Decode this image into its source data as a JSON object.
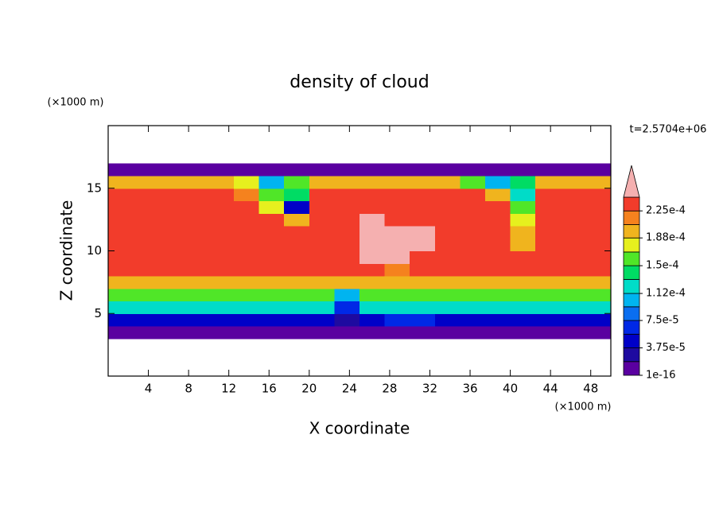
{
  "chart_data": {
    "type": "contour",
    "title": "density of cloud",
    "x_label": "X coordinate",
    "y_label": "Z coordinate",
    "x_unit": "(×1000 m)",
    "y_unit": "(×1000 m)",
    "annotation": "t=2.5704e+06",
    "xlim": [
      0,
      50
    ],
    "ylim": [
      0,
      20
    ],
    "xticks": [
      4,
      8,
      12,
      16,
      20,
      24,
      28,
      32,
      36,
      40,
      44,
      48
    ],
    "yticks": [
      5,
      10,
      15
    ],
    "x": [
      1.25,
      3.75,
      6.25,
      8.75,
      11.25,
      13.75,
      16.25,
      18.75,
      21.25,
      23.75,
      26.25,
      28.75,
      31.25,
      33.75,
      36.25,
      38.75,
      41.25,
      43.75,
      46.25,
      48.75
    ],
    "z": [
      3.5,
      4.5,
      5.5,
      6.5,
      7.5,
      8.5,
      9.5,
      10.5,
      11.5,
      12.5,
      13.5,
      14.5,
      15.5,
      16.5
    ],
    "values": [
      [
        1.2e-05,
        1.2e-05,
        1.2e-05,
        1.2e-05,
        1.2e-05,
        1.2e-05,
        1.2e-05,
        1.2e-05,
        1.2e-05,
        1.2e-05,
        1.2e-05,
        1.2e-05,
        1.2e-05,
        1.2e-05,
        1.2e-05,
        1.2e-05,
        1.2e-05,
        1.2e-05,
        1.2e-05,
        1.2e-05
      ],
      [
        5e-05,
        5e-05,
        5e-05,
        5e-05,
        5e-05,
        5e-05,
        5e-05,
        5e-05,
        4.5e-05,
        3e-05,
        5e-05,
        6e-05,
        6e-05,
        5e-05,
        5e-05,
        5e-05,
        5e-05,
        5e-05,
        5e-05,
        5e-05
      ],
      [
        0.000125,
        0.000125,
        0.000125,
        0.000125,
        0.000125,
        0.000125,
        0.000125,
        0.000125,
        0.00012,
        6e-05,
        0.000125,
        0.000125,
        0.000125,
        0.000125,
        0.000125,
        0.000125,
        0.000125,
        0.000125,
        0.000125,
        0.000125
      ],
      [
        0.00016,
        0.00016,
        0.00016,
        0.00016,
        0.00016,
        0.00016,
        0.00016,
        0.00016,
        0.00016,
        0.0001,
        0.00016,
        0.00016,
        0.00016,
        0.00016,
        0.00016,
        0.00016,
        0.00016,
        0.00016,
        0.00016,
        0.00016
      ],
      [
        0.0002,
        0.0002,
        0.0002,
        0.0002,
        0.0002,
        0.0002,
        0.0002,
        0.0002,
        0.00019,
        0.0002,
        0.0002,
        0.0002,
        0.0002,
        0.0002,
        0.0002,
        0.0002,
        0.0002,
        0.0002,
        0.0002,
        0.0002
      ],
      [
        0.00023,
        0.00023,
        0.00023,
        0.00023,
        0.00023,
        0.00023,
        0.00023,
        0.00023,
        0.00023,
        0.00023,
        0.00023,
        0.00022,
        0.00023,
        0.00023,
        0.00023,
        0.00023,
        0.00023,
        0.00023,
        0.00023,
        0.00023
      ],
      [
        0.00023,
        0.00023,
        0.00023,
        0.00023,
        0.00023,
        0.00023,
        0.00023,
        0.00023,
        0.00023,
        0.00023,
        0.00025,
        0.00025,
        0.00023,
        0.00023,
        0.00023,
        0.00023,
        0.00023,
        0.00023,
        0.00023,
        0.00023
      ],
      [
        0.00023,
        0.00023,
        0.00023,
        0.00023,
        0.00023,
        0.00023,
        0.00023,
        0.00023,
        0.00023,
        0.00023,
        0.00025,
        0.00025,
        0.00025,
        0.00023,
        0.00023,
        0.00023,
        0.0002,
        0.00023,
        0.00023,
        0.00023
      ],
      [
        0.00023,
        0.00023,
        0.00023,
        0.00023,
        0.00023,
        0.00023,
        0.00023,
        0.00023,
        0.00023,
        0.00023,
        0.00025,
        0.00025,
        0.00025,
        0.00023,
        0.00023,
        0.00023,
        0.00019,
        0.00023,
        0.00023,
        0.00023
      ],
      [
        0.00023,
        0.00023,
        0.00023,
        0.00023,
        0.00023,
        0.00023,
        0.00023,
        0.00019,
        0.00023,
        0.00023,
        0.00025,
        0.00023,
        0.00023,
        0.00023,
        0.00023,
        0.00023,
        0.00018,
        0.00023,
        0.00023,
        0.00023
      ],
      [
        0.00023,
        0.00023,
        0.00023,
        0.00023,
        0.00023,
        0.00023,
        0.00017,
        4e-05,
        0.00023,
        0.00023,
        0.00023,
        0.00023,
        0.00023,
        0.00023,
        0.00023,
        0.00023,
        0.00016,
        0.00023,
        0.00023,
        0.00023
      ],
      [
        0.00023,
        0.00023,
        0.00023,
        0.00023,
        0.00023,
        0.00022,
        0.00015,
        0.00014,
        0.00023,
        0.00023,
        0.00023,
        0.00023,
        0.00023,
        0.00023,
        0.00023,
        0.0002,
        0.00012,
        0.00023,
        0.00023,
        0.00023
      ],
      [
        0.0002,
        0.0002,
        0.0002,
        0.00019,
        0.00019,
        0.00017,
        0.0001,
        0.00016,
        0.00019,
        0.00019,
        0.0002,
        0.0002,
        0.0002,
        0.00019,
        0.00015,
        0.0001,
        0.00014,
        0.00019,
        0.0002,
        0.0002
      ],
      [
        1.2e-05,
        1.2e-05,
        1.2e-05,
        1.2e-05,
        1.2e-05,
        1.2e-05,
        1.2e-05,
        1.2e-05,
        1.2e-05,
        1.2e-05,
        1.2e-05,
        1.2e-05,
        1.2e-05,
        1.2e-05,
        1.2e-05,
        1.2e-05,
        1.2e-05,
        1.2e-05,
        1.2e-05,
        1.2e-05
      ]
    ],
    "levels": [
      1e-16,
      1.875e-05,
      3.75e-05,
      5.625e-05,
      7.5e-05,
      9.375e-05,
      0.000112,
      0.00013125,
      0.00015,
      0.00016875,
      0.000188,
      0.00020625,
      0.000225,
      0.00024375
    ],
    "colors": [
      "#5a00a0",
      "#1e0aa0",
      "#0000c8",
      "#0028e6",
      "#0a6ef0",
      "#00b4f0",
      "#00dcc8",
      "#00dc64",
      "#50e628",
      "#e6f01e",
      "#f0b41e",
      "#f5821e",
      "#f23c2b",
      "#f5b0b0"
    ],
    "colorbar_ticks": [
      {
        "value": 1e-16,
        "label": "1e-16"
      },
      {
        "value": 3.75e-05,
        "label": "3.75e-5"
      },
      {
        "value": 7.5e-05,
        "label": "7.5e-5"
      },
      {
        "value": 0.000112,
        "label": "1.12e-4"
      },
      {
        "value": 0.00015,
        "label": "1.5e-4"
      },
      {
        "value": 0.000188,
        "label": "1.88e-4"
      },
      {
        "value": 0.000225,
        "label": "2.25e-4"
      }
    ]
  }
}
